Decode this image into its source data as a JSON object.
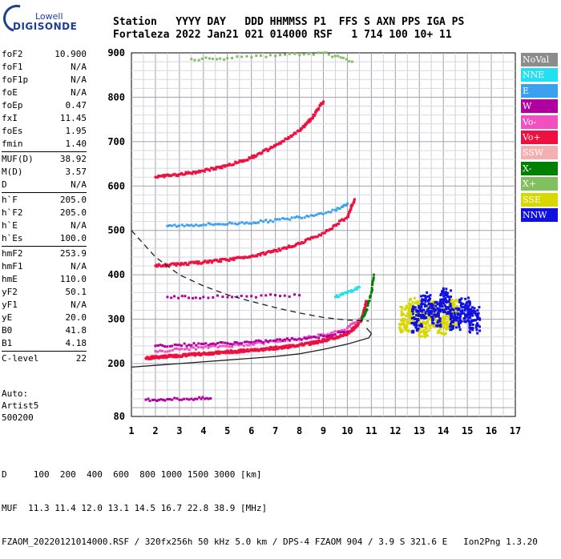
{
  "logo": {
    "line1": "Lowell",
    "line2": "DIGISONDE"
  },
  "header": {
    "line1": "Station   YYYY DAY   DDD HHMMSS P1  FFS S AXN PPS IGA PS",
    "line2": "Fortaleza 2022 Jan21 021 014000 RSF   1 714 100 10+ 11"
  },
  "parameters": [
    {
      "group": [
        {
          "k": "foF2",
          "v": "10.900"
        },
        {
          "k": "foF1",
          "v": "N/A"
        },
        {
          "k": "foF1p",
          "v": "N/A"
        },
        {
          "k": "foE",
          "v": "N/A"
        },
        {
          "k": "foEp",
          "v": "0.47"
        },
        {
          "k": "fxI",
          "v": "11.45"
        },
        {
          "k": "foEs",
          "v": "1.95"
        },
        {
          "k": "fmin",
          "v": "1.40"
        }
      ]
    },
    {
      "group": [
        {
          "k": "MUF(D)",
          "v": "38.92"
        },
        {
          "k": "M(D)",
          "v": "3.57"
        },
        {
          "k": "D",
          "v": "N/A"
        }
      ]
    },
    {
      "group": [
        {
          "k": "h`F",
          "v": "205.0"
        },
        {
          "k": "h`F2",
          "v": "205.0"
        },
        {
          "k": "h`E",
          "v": "N/A"
        },
        {
          "k": "h`Es",
          "v": "100.0"
        }
      ]
    },
    {
      "group": [
        {
          "k": "hmF2",
          "v": "253.9"
        },
        {
          "k": "hmF1",
          "v": "N/A"
        },
        {
          "k": "hmE",
          "v": "110.0"
        },
        {
          "k": "yF2",
          "v": "50.1"
        },
        {
          "k": "yF1",
          "v": "N/A"
        },
        {
          "k": "yE",
          "v": "20.0"
        },
        {
          "k": "B0",
          "v": "41.8"
        },
        {
          "k": "B1",
          "v": "4.18"
        }
      ]
    },
    {
      "group": [
        {
          "k": "C-level",
          "v": "22"
        }
      ]
    }
  ],
  "auto": {
    "line1": "Auto:",
    "line2": "Artist5",
    "line3": "500200"
  },
  "legend": [
    {
      "label": "NoVal",
      "color": "#8c8c8c"
    },
    {
      "label": "NNE",
      "color": "#22e0f0"
    },
    {
      "label": "E",
      "color": "#3aa0f0"
    },
    {
      "label": "W",
      "color": "#b000a0"
    },
    {
      "label": "Vo-",
      "color": "#f050c0"
    },
    {
      "label": "Vo+",
      "color": "#ee1040"
    },
    {
      "label": "SSW",
      "color": "#f4b0b0"
    },
    {
      "label": "X-",
      "color": "#008000"
    },
    {
      "label": "X+",
      "color": "#80c060"
    },
    {
      "label": "SSE",
      "color": "#d8d800"
    },
    {
      "label": "NNW",
      "color": "#1010e0"
    }
  ],
  "footer": {
    "line1": "D     100  200  400  600  800 1000 1500 3000 [km]",
    "line2": "MUF  11.3 11.4 12.0 13.1 14.5 16.7 22.8 38.9 [MHz]",
    "line3": "FZAOM_20220121014000.RSF / 320fx256h 50 kHz 5.0 km / DPS-4 FZAOM 904 / 3.9 S 321.6 E   Ion2Png 1.3.20"
  },
  "chart_data": {
    "type": "scatter",
    "xlim": [
      1,
      17
    ],
    "ylim": [
      80,
      900
    ],
    "x_ticks": [
      1,
      2,
      3,
      4,
      5,
      6,
      7,
      8,
      9,
      10,
      11,
      12,
      13,
      14,
      15,
      16,
      17
    ],
    "y_ticks": [
      80,
      200,
      300,
      400,
      500,
      600,
      700,
      800,
      900
    ],
    "grid": true,
    "series": [
      {
        "name": "Vo+",
        "color": "#ee1040",
        "x": [
          1.6,
          2.0,
          2.5,
          3.0,
          3.5,
          4.0,
          4.5,
          5.0,
          5.5,
          6.0,
          6.5,
          7.0,
          7.5,
          8.0,
          8.5,
          9.0,
          9.5,
          10.0,
          10.3,
          10.6,
          10.8
        ],
        "y": [
          212,
          214,
          216,
          218,
          220,
          222,
          224,
          226,
          228,
          230,
          232,
          235,
          238,
          242,
          246,
          252,
          258,
          268,
          280,
          300,
          340
        ]
      },
      {
        "name": "Vo-",
        "color": "#f050c0",
        "x": [
          2.0,
          3.0,
          4.0,
          5.0,
          6.0,
          7.0,
          8.0,
          9.0,
          10.0,
          10.5
        ],
        "y": [
          228,
          232,
          236,
          240,
          244,
          250,
          256,
          265,
          280,
          300
        ]
      },
      {
        "name": "W",
        "color": "#b000a0",
        "x": [
          2.0,
          3.0,
          4.0,
          5.0,
          6.0,
          7.0,
          8.0,
          9.0,
          10.0,
          2.5,
          4.0,
          6.0,
          8.0,
          1.6,
          2.5,
          3.5,
          4.3
        ],
        "y": [
          240,
          242,
          244,
          246,
          248,
          252,
          256,
          262,
          272,
          350,
          350,
          352,
          354,
          118,
          119,
          120,
          121
        ]
      },
      {
        "name": "E",
        "color": "#3aa0f0",
        "x": [
          2.5,
          3.5,
          4.5,
          5.5,
          6.5,
          7.5,
          8.5,
          9.5,
          10.0
        ],
        "y": [
          510,
          512,
          514,
          516,
          520,
          526,
          534,
          546,
          560
        ]
      },
      {
        "name": "NNE",
        "color": "#22e0f0",
        "x": [
          9.5,
          10.0,
          10.5
        ],
        "y": [
          350,
          360,
          372
        ]
      },
      {
        "name": "X-",
        "color": "#008000",
        "x": [
          10.6,
          10.8,
          11.0,
          11.1
        ],
        "y": [
          300,
          320,
          360,
          400
        ]
      },
      {
        "name": "X+",
        "color": "#80c060",
        "x": [
          3.5,
          5.0,
          7.0,
          9.0,
          10.2
        ],
        "y": [
          886,
          888,
          893,
          900,
          880
        ]
      },
      {
        "name": "SSE",
        "color": "#d8d800",
        "x": [
          12.4,
          12.8,
          13.2,
          13.6,
          14.0,
          14.4
        ],
        "y": [
          300,
          320,
          290,
          310,
          295,
          315
        ]
      },
      {
        "name": "NNW",
        "color": "#1010e0",
        "x": [
          12.9,
          13.3,
          13.7,
          14.1,
          14.5,
          14.9,
          15.3
        ],
        "y": [
          300,
          330,
          310,
          340,
          305,
          320,
          298
        ]
      },
      {
        "name": "multi-hop 2F",
        "color": "#ee1040",
        "x": [
          2.0,
          3.0,
          4.0,
          5.0,
          6.0,
          7.0,
          8.0,
          9.0,
          10.0,
          10.3
        ],
        "y": [
          420,
          424,
          428,
          434,
          442,
          454,
          470,
          494,
          530,
          570
        ]
      },
      {
        "name": "multi-hop 3F",
        "color": "#ee1040",
        "x": [
          2.0,
          3.0,
          4.0,
          5.0,
          6.0,
          7.0,
          8.0,
          8.5,
          9.0
        ],
        "y": [
          620,
          626,
          634,
          646,
          664,
          690,
          724,
          752,
          790
        ]
      }
    ],
    "profile_solid": {
      "x": [
        1,
        2,
        3,
        4,
        5,
        6,
        7,
        8,
        9,
        10,
        10.9,
        11.0,
        10.8
      ],
      "y": [
        192,
        196,
        200,
        204,
        208,
        212,
        216,
        222,
        232,
        244,
        258,
        268,
        280
      ]
    },
    "profile_dashed": {
      "x": [
        1,
        1.5,
        2,
        3,
        4,
        5,
        6,
        7,
        8,
        9,
        10,
        10.9
      ],
      "y": [
        500,
        470,
        440,
        400,
        375,
        355,
        340,
        326,
        314,
        304,
        298,
        296
      ]
    }
  }
}
